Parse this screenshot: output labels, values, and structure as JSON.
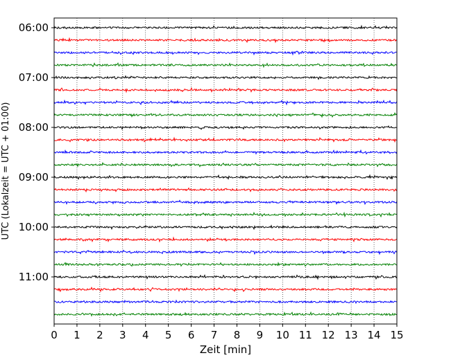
{
  "chart_data": {
    "type": "line",
    "title": "",
    "xlabel": "Zeit  [min]",
    "ylabel": "UTC (Lokalzeit = UTC + 01:00)",
    "xlim": [
      0,
      15
    ],
    "x_ticks": [
      "0",
      "1",
      "2",
      "3",
      "4",
      "5",
      "6",
      "7",
      "8",
      "9",
      "10",
      "11",
      "12",
      "13",
      "14",
      "15"
    ],
    "y_tick_labels": [
      "06:00",
      "07:00",
      "08:00",
      "09:00",
      "10:00",
      "11:00"
    ],
    "grid": "vertical dotted",
    "trace_interval_minutes": 15,
    "trace_colors": [
      "#000000",
      "#ff0000",
      "#0000ff",
      "#008000"
    ],
    "traces": [
      {
        "start": "06:00",
        "color": "#000000"
      },
      {
        "start": "06:15",
        "color": "#ff0000"
      },
      {
        "start": "06:30",
        "color": "#0000ff"
      },
      {
        "start": "06:45",
        "color": "#008000"
      },
      {
        "start": "07:00",
        "color": "#000000"
      },
      {
        "start": "07:15",
        "color": "#ff0000"
      },
      {
        "start": "07:30",
        "color": "#0000ff"
      },
      {
        "start": "07:45",
        "color": "#008000"
      },
      {
        "start": "08:00",
        "color": "#000000"
      },
      {
        "start": "08:15",
        "color": "#ff0000"
      },
      {
        "start": "08:30",
        "color": "#0000ff"
      },
      {
        "start": "08:45",
        "color": "#008000"
      },
      {
        "start": "09:00",
        "color": "#000000"
      },
      {
        "start": "09:15",
        "color": "#ff0000"
      },
      {
        "start": "09:30",
        "color": "#0000ff"
      },
      {
        "start": "09:45",
        "color": "#008000"
      },
      {
        "start": "10:00",
        "color": "#000000"
      },
      {
        "start": "10:15",
        "color": "#ff0000"
      },
      {
        "start": "10:30",
        "color": "#0000ff"
      },
      {
        "start": "10:45",
        "color": "#008000"
      },
      {
        "start": "11:00",
        "color": "#000000"
      },
      {
        "start": "11:15",
        "color": "#ff0000"
      },
      {
        "start": "11:30",
        "color": "#0000ff"
      },
      {
        "start": "11:45",
        "color": "#008000"
      }
    ]
  }
}
